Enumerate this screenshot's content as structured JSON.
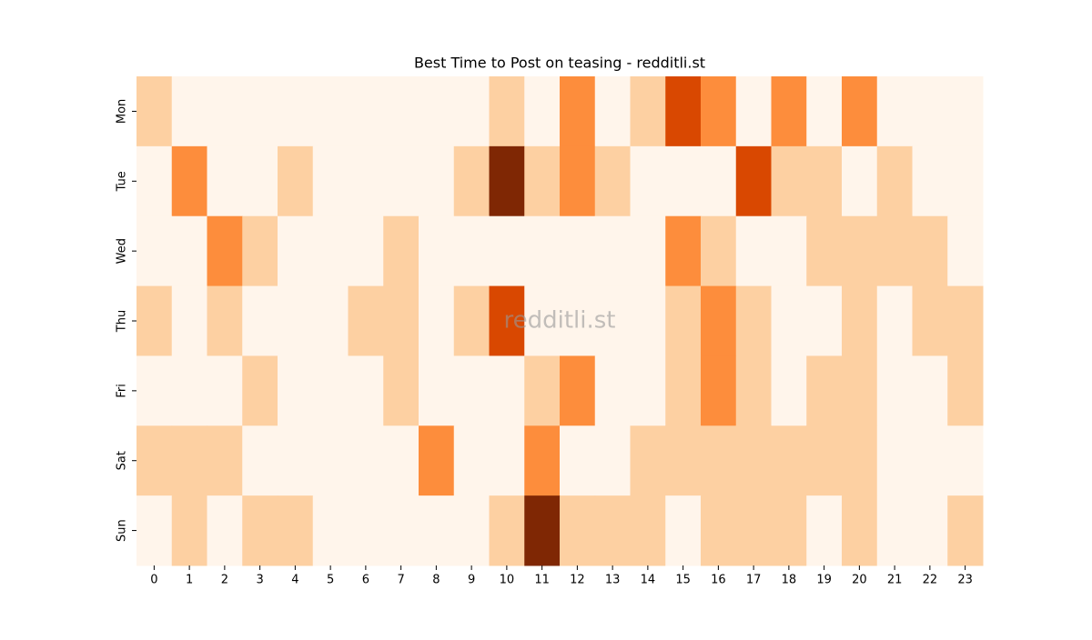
{
  "chart_data": {
    "type": "heatmap",
    "title": "Best Time to Post on teasing - redditli.st",
    "watermark": "redditli.st",
    "x_categories": [
      "0",
      "1",
      "2",
      "3",
      "4",
      "5",
      "6",
      "7",
      "8",
      "9",
      "10",
      "11",
      "12",
      "13",
      "14",
      "15",
      "16",
      "17",
      "18",
      "19",
      "20",
      "21",
      "22",
      "23"
    ],
    "y_categories": [
      "Mon",
      "Tue",
      "Wed",
      "Thu",
      "Fri",
      "Sat",
      "Sun"
    ],
    "values": [
      [
        1,
        0,
        0,
        0,
        0,
        0,
        0,
        0,
        0,
        0,
        1,
        0,
        2,
        0,
        1,
        3,
        2,
        0,
        2,
        0,
        2,
        0,
        0,
        0
      ],
      [
        0,
        2,
        0,
        0,
        1,
        0,
        0,
        0,
        0,
        1,
        4,
        1,
        2,
        1,
        0,
        0,
        0,
        3,
        1,
        1,
        0,
        1,
        0,
        0
      ],
      [
        0,
        0,
        2,
        1,
        0,
        0,
        0,
        1,
        0,
        0,
        0,
        0,
        0,
        0,
        0,
        2,
        1,
        0,
        0,
        1,
        1,
        1,
        1,
        0
      ],
      [
        1,
        0,
        1,
        0,
        0,
        0,
        1,
        1,
        0,
        1,
        3,
        0,
        0,
        0,
        0,
        1,
        2,
        1,
        0,
        0,
        1,
        0,
        1,
        1
      ],
      [
        0,
        0,
        0,
        1,
        0,
        0,
        0,
        1,
        0,
        0,
        0,
        1,
        2,
        0,
        0,
        1,
        2,
        1,
        0,
        1,
        1,
        0,
        0,
        1
      ],
      [
        1,
        1,
        1,
        0,
        0,
        0,
        0,
        0,
        2,
        0,
        0,
        2,
        0,
        0,
        1,
        1,
        1,
        1,
        1,
        1,
        1,
        0,
        0,
        0
      ],
      [
        0,
        1,
        0,
        1,
        1,
        0,
        0,
        0,
        0,
        0,
        1,
        4,
        1,
        1,
        1,
        0,
        1,
        1,
        1,
        0,
        1,
        0,
        0,
        1
      ]
    ],
    "color_scale": [
      "#fff5eb",
      "#fdd0a2",
      "#fd8d3c",
      "#d94801",
      "#7f2704"
    ]
  }
}
